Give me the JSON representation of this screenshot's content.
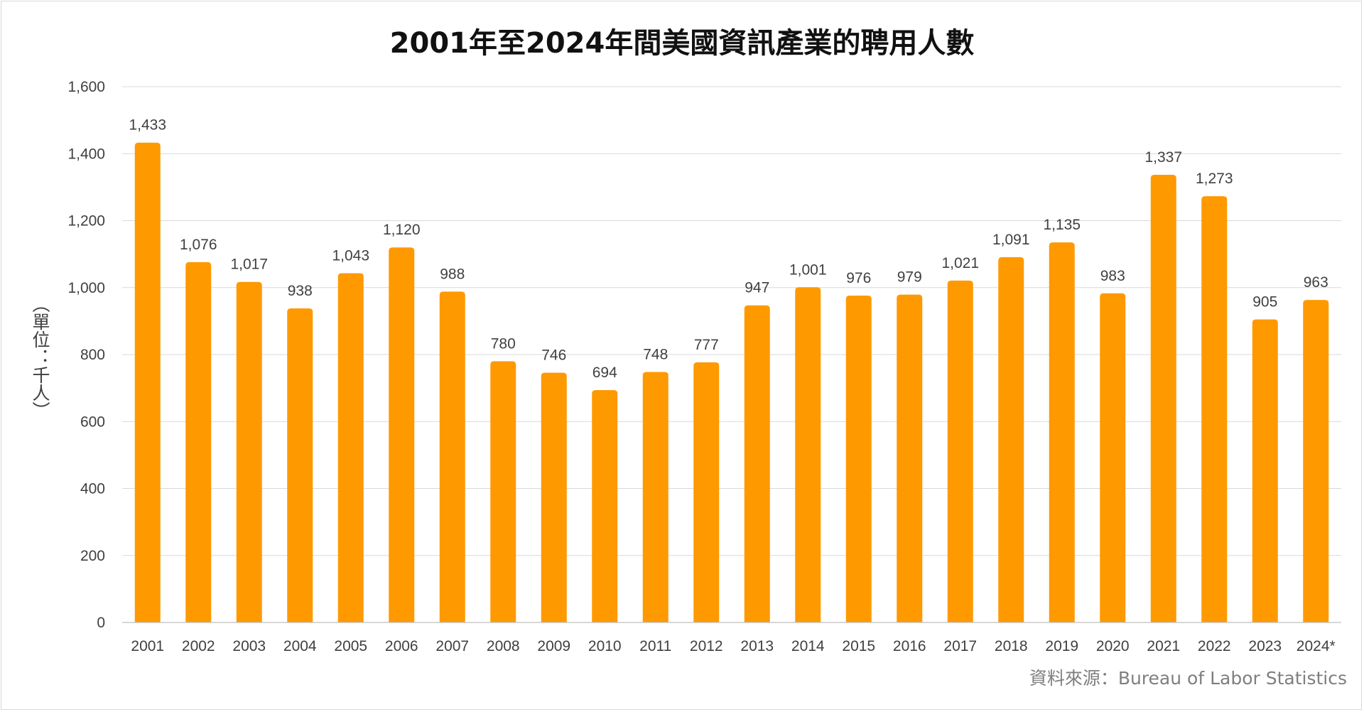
{
  "chart_data": {
    "type": "bar",
    "title": "2001年至2024年間美國資訊產業的聘用人數",
    "ylabel": "（單位：千人）",
    "source": "資料來源：Bureau of Labor Statistics",
    "categories": [
      "2001",
      "2002",
      "2003",
      "2004",
      "2005",
      "2006",
      "2007",
      "2008",
      "2009",
      "2010",
      "2011",
      "2012",
      "2013",
      "2014",
      "2015",
      "2016",
      "2017",
      "2018",
      "2019",
      "2020",
      "2021",
      "2022",
      "2023",
      "2024*"
    ],
    "values": [
      1433,
      1076,
      1017,
      938,
      1043,
      1120,
      988,
      780,
      746,
      694,
      748,
      777,
      947,
      1001,
      976,
      979,
      1021,
      1091,
      1135,
      983,
      1337,
      1273,
      905,
      963
    ],
    "value_labels": [
      "1,433",
      "1,076",
      "1,017",
      "938",
      "1,043",
      "1,120",
      "988",
      "780",
      "746",
      "694",
      "748",
      "777",
      "947",
      "1,001",
      "976",
      "979",
      "1,021",
      "1,091",
      "1,135",
      "983",
      "1,337",
      "1,273",
      "905",
      "963"
    ],
    "yticks": [
      0,
      200,
      400,
      600,
      800,
      1000,
      1200,
      1400,
      1600
    ],
    "ytick_labels": [
      "0",
      "200",
      "400",
      "600",
      "800",
      "1,000",
      "1,200",
      "1,400",
      "1,600"
    ],
    "ylim": [
      0,
      1600
    ],
    "grid": true,
    "legend": "none",
    "bar_color": "#ff9900"
  }
}
